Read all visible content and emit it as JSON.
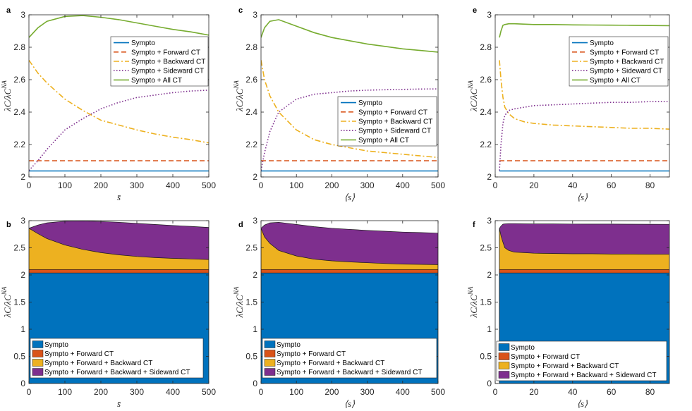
{
  "chart_data": [
    {
      "panel": "a",
      "type": "line",
      "xlabel": "s̄",
      "ylabel": "λC/λC^NA",
      "xlim": [
        0,
        500
      ],
      "ylim": [
        2,
        3
      ],
      "xticks": [
        0,
        100,
        200,
        300,
        400,
        500
      ],
      "yticks": [
        2,
        2.2,
        2.4,
        2.6,
        2.8,
        3
      ],
      "legend_position": "upper-right",
      "series": [
        {
          "name": "Sympto",
          "color": "#0072BD",
          "style": "solid",
          "x": [
            0,
            500
          ],
          "y": [
            2.037,
            2.037
          ]
        },
        {
          "name": "Sympto + Forward CT",
          "color": "#D95319",
          "style": "dashed",
          "x": [
            0,
            500
          ],
          "y": [
            2.1,
            2.1
          ]
        },
        {
          "name": "Sympto + Backward CT",
          "color": "#EDB120",
          "style": "dashdot",
          "x": [
            0,
            25,
            50,
            100,
            150,
            200,
            250,
            300,
            350,
            400,
            450,
            500
          ],
          "y": [
            2.72,
            2.64,
            2.58,
            2.48,
            2.41,
            2.35,
            2.32,
            2.29,
            2.265,
            2.245,
            2.23,
            2.21
          ]
        },
        {
          "name": "Sympto + Sideward CT",
          "color": "#7E2F8E",
          "style": "dotted",
          "x": [
            0,
            25,
            50,
            100,
            150,
            200,
            250,
            300,
            350,
            400,
            450,
            500
          ],
          "y": [
            2.04,
            2.1,
            2.17,
            2.29,
            2.36,
            2.42,
            2.46,
            2.49,
            2.505,
            2.52,
            2.53,
            2.535
          ]
        },
        {
          "name": "Sympto + All CT",
          "color": "#77AC30",
          "style": "solid",
          "x": [
            0,
            25,
            50,
            100,
            150,
            200,
            250,
            300,
            350,
            400,
            450,
            500
          ],
          "y": [
            2.86,
            2.92,
            2.96,
            2.99,
            2.995,
            2.985,
            2.97,
            2.95,
            2.93,
            2.91,
            2.895,
            2.875
          ]
        }
      ]
    },
    {
      "panel": "c",
      "type": "line",
      "xlabel": "⟨s⟩",
      "ylabel": "λC/λC^NA",
      "xlim": [
        0,
        500
      ],
      "ylim": [
        2,
        3
      ],
      "xticks": [
        0,
        100,
        200,
        300,
        400,
        500
      ],
      "yticks": [
        2,
        2.2,
        2.4,
        2.6,
        2.8,
        3
      ],
      "legend_position": "lower-right",
      "series": [
        {
          "name": "Sympto",
          "color": "#0072BD",
          "style": "solid",
          "x": [
            0,
            500
          ],
          "y": [
            2.037,
            2.037
          ]
        },
        {
          "name": "Sympto + Forward CT",
          "color": "#D95319",
          "style": "dashed",
          "x": [
            0,
            500
          ],
          "y": [
            2.1,
            2.1
          ]
        },
        {
          "name": "Sympto + Backward CT",
          "color": "#EDB120",
          "style": "dashdot",
          "x": [
            0,
            10,
            25,
            50,
            100,
            150,
            200,
            250,
            300,
            350,
            400,
            450,
            500
          ],
          "y": [
            2.72,
            2.6,
            2.5,
            2.4,
            2.29,
            2.23,
            2.2,
            2.18,
            2.16,
            2.15,
            2.14,
            2.13,
            2.12
          ]
        },
        {
          "name": "Sympto + Sideward CT",
          "color": "#7E2F8E",
          "style": "dotted",
          "x": [
            0,
            10,
            25,
            50,
            100,
            150,
            200,
            250,
            300,
            350,
            400,
            450,
            500
          ],
          "y": [
            2.04,
            2.15,
            2.28,
            2.4,
            2.48,
            2.51,
            2.52,
            2.53,
            2.535,
            2.538,
            2.54,
            2.542,
            2.543
          ]
        },
        {
          "name": "Sympto + All CT",
          "color": "#77AC30",
          "style": "solid",
          "x": [
            0,
            10,
            25,
            50,
            100,
            150,
            200,
            250,
            300,
            350,
            400,
            450,
            500
          ],
          "y": [
            2.86,
            2.92,
            2.96,
            2.97,
            2.93,
            2.89,
            2.86,
            2.84,
            2.82,
            2.805,
            2.79,
            2.78,
            2.77
          ]
        }
      ]
    },
    {
      "panel": "e",
      "type": "line",
      "xlabel": "⟨s⟩",
      "ylabel": "λC/λC^NA",
      "xlim": [
        0,
        90
      ],
      "ylim": [
        2,
        3
      ],
      "xticks": [
        0,
        20,
        40,
        60,
        80
      ],
      "yticks": [
        2,
        2.2,
        2.4,
        2.6,
        2.8,
        3
      ],
      "legend_position": "upper-right",
      "series": [
        {
          "name": "Sympto",
          "color": "#0072BD",
          "style": "solid",
          "x": [
            2.2,
            90
          ],
          "y": [
            2.037,
            2.037
          ]
        },
        {
          "name": "Sympto + Forward CT",
          "color": "#D95319",
          "style": "dashed",
          "x": [
            2.2,
            90
          ],
          "y": [
            2.1,
            2.1
          ]
        },
        {
          "name": "Sympto + Backward CT",
          "color": "#EDB120",
          "style": "dashdot",
          "x": [
            2.2,
            3,
            4,
            5,
            7,
            10,
            15,
            20,
            30,
            40,
            50,
            60,
            70,
            80,
            90
          ],
          "y": [
            2.72,
            2.6,
            2.49,
            2.43,
            2.39,
            2.36,
            2.34,
            2.33,
            2.32,
            2.315,
            2.31,
            2.305,
            2.3,
            2.3,
            2.295
          ]
        },
        {
          "name": "Sympto + Sideward CT",
          "color": "#7E2F8E",
          "style": "dotted",
          "x": [
            2.2,
            3,
            4,
            5,
            7,
            10,
            15,
            20,
            30,
            40,
            50,
            60,
            70,
            80,
            90
          ],
          "y": [
            2.04,
            2.2,
            2.33,
            2.38,
            2.41,
            2.42,
            2.43,
            2.44,
            2.445,
            2.45,
            2.455,
            2.46,
            2.46,
            2.465,
            2.465
          ]
        },
        {
          "name": "Sympto + All CT",
          "color": "#77AC30",
          "style": "solid",
          "x": [
            2.2,
            3,
            4,
            5,
            7,
            10,
            20,
            30,
            40,
            50,
            60,
            70,
            80,
            90
          ],
          "y": [
            2.86,
            2.9,
            2.935,
            2.94,
            2.945,
            2.945,
            2.94,
            2.94,
            2.938,
            2.937,
            2.936,
            2.935,
            2.934,
            2.933
          ]
        }
      ]
    },
    {
      "panel": "b",
      "type": "area",
      "xlabel": "s̄",
      "ylabel": "λC/λC^NA",
      "xlim": [
        0,
        500
      ],
      "ylim": [
        0,
        3
      ],
      "xticks": [
        0,
        100,
        200,
        300,
        400,
        500
      ],
      "yticks": [
        0,
        0.5,
        1,
        1.5,
        2,
        2.5,
        3
      ],
      "legend_position": "lower-left",
      "x": [
        0,
        25,
        50,
        100,
        150,
        200,
        250,
        300,
        350,
        400,
        450,
        500
      ],
      "series": [
        {
          "name": "Sympto",
          "color": "#0072BD",
          "top": [
            2.037,
            2.037,
            2.037,
            2.037,
            2.037,
            2.037,
            2.037,
            2.037,
            2.037,
            2.037,
            2.037,
            2.037
          ]
        },
        {
          "name": "Sympto + Forward CT",
          "color": "#D95319",
          "top": [
            2.1,
            2.1,
            2.1,
            2.1,
            2.1,
            2.1,
            2.1,
            2.1,
            2.1,
            2.1,
            2.1,
            2.1
          ]
        },
        {
          "name": "Sympto + Forward + Backward CT",
          "color": "#EDB120",
          "top": [
            2.86,
            2.76,
            2.67,
            2.55,
            2.47,
            2.41,
            2.37,
            2.34,
            2.32,
            2.305,
            2.295,
            2.285
          ]
        },
        {
          "name": "Sympto + Forward + Backward + Sideward CT",
          "color": "#7E2F8E",
          "top": [
            2.86,
            2.92,
            2.96,
            2.99,
            2.995,
            2.985,
            2.97,
            2.95,
            2.93,
            2.91,
            2.895,
            2.875
          ]
        }
      ]
    },
    {
      "panel": "d",
      "type": "area",
      "xlabel": "⟨s⟩",
      "ylabel": "λC/λC^NA",
      "xlim": [
        0,
        500
      ],
      "ylim": [
        0,
        3
      ],
      "xticks": [
        0,
        100,
        200,
        300,
        400,
        500
      ],
      "yticks": [
        0,
        0.5,
        1,
        1.5,
        2,
        2.5,
        3
      ],
      "legend_position": "lower-left",
      "x": [
        0,
        10,
        25,
        50,
        100,
        150,
        200,
        250,
        300,
        350,
        400,
        450,
        500
      ],
      "series": [
        {
          "name": "Sympto",
          "color": "#0072BD",
          "top": [
            2.037,
            2.037,
            2.037,
            2.037,
            2.037,
            2.037,
            2.037,
            2.037,
            2.037,
            2.037,
            2.037,
            2.037,
            2.037
          ]
        },
        {
          "name": "Sympto + Forward CT",
          "color": "#D95319",
          "top": [
            2.1,
            2.1,
            2.1,
            2.1,
            2.1,
            2.1,
            2.1,
            2.1,
            2.1,
            2.1,
            2.1,
            2.1,
            2.1
          ]
        },
        {
          "name": "Sympto + Forward + Backward CT",
          "color": "#EDB120",
          "top": [
            2.86,
            2.7,
            2.58,
            2.45,
            2.35,
            2.29,
            2.26,
            2.24,
            2.225,
            2.21,
            2.2,
            2.195,
            2.19
          ]
        },
        {
          "name": "Sympto + Forward + Backward + Sideward CT",
          "color": "#7E2F8E",
          "top": [
            2.86,
            2.92,
            2.96,
            2.97,
            2.93,
            2.89,
            2.86,
            2.84,
            2.82,
            2.805,
            2.79,
            2.78,
            2.77
          ]
        }
      ]
    },
    {
      "panel": "f",
      "type": "area",
      "xlabel": "⟨s⟩",
      "ylabel": "λC/λC^NA",
      "xlim": [
        0,
        90
      ],
      "ylim": [
        0,
        3
      ],
      "xticks": [
        0,
        20,
        40,
        60,
        80
      ],
      "yticks": [
        0,
        0.5,
        1,
        1.5,
        2,
        2.5,
        3
      ],
      "legend_position": "lower-left",
      "x": [
        2.2,
        3,
        4,
        5,
        7,
        10,
        15,
        20,
        30,
        40,
        50,
        60,
        70,
        80,
        90
      ],
      "series": [
        {
          "name": "Sympto",
          "color": "#0072BD",
          "top": [
            2.037,
            2.037,
            2.037,
            2.037,
            2.037,
            2.037,
            2.037,
            2.037,
            2.037,
            2.037,
            2.037,
            2.037,
            2.037,
            2.037,
            2.037
          ]
        },
        {
          "name": "Sympto + Forward CT",
          "color": "#D95319",
          "top": [
            2.1,
            2.1,
            2.1,
            2.1,
            2.1,
            2.1,
            2.1,
            2.1,
            2.1,
            2.1,
            2.1,
            2.1,
            2.1,
            2.1,
            2.1
          ]
        },
        {
          "name": "Sympto + Forward + Backward CT",
          "color": "#EDB120",
          "top": [
            2.86,
            2.72,
            2.6,
            2.5,
            2.45,
            2.42,
            2.41,
            2.4,
            2.395,
            2.39,
            2.39,
            2.385,
            2.385,
            2.38,
            2.38
          ]
        },
        {
          "name": "Sympto + Forward + Backward + Sideward CT",
          "color": "#7E2F8E",
          "top": [
            2.86,
            2.9,
            2.935,
            2.94,
            2.945,
            2.945,
            2.942,
            2.94,
            2.94,
            2.938,
            2.937,
            2.936,
            2.935,
            2.934,
            2.933
          ]
        }
      ]
    }
  ]
}
